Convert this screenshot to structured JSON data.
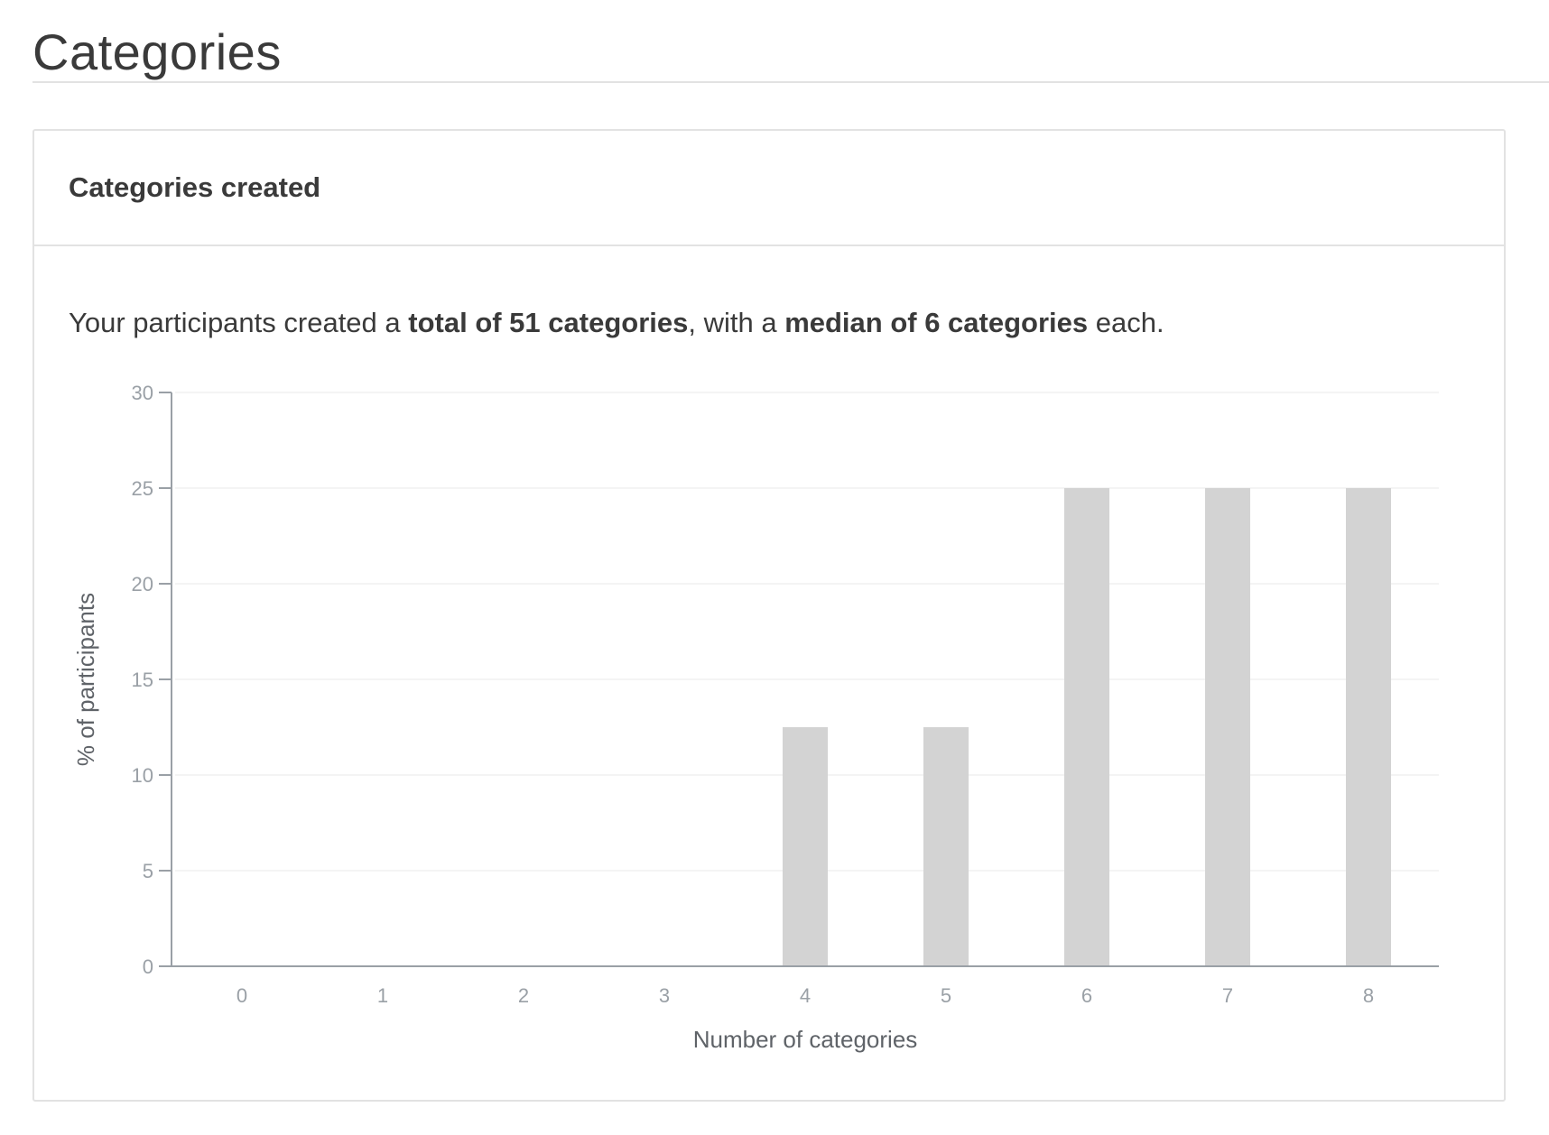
{
  "page": {
    "title": "Categories"
  },
  "card": {
    "title": "Categories created",
    "summary": {
      "prefix": "Your participants created a ",
      "total": "total of 51 categories",
      "middle": ", with a ",
      "median": "median of 6 categories",
      "suffix": " each."
    }
  },
  "chart_data": {
    "type": "bar",
    "categories": [
      "0",
      "1",
      "2",
      "3",
      "4",
      "5",
      "6",
      "7",
      "8"
    ],
    "values": [
      0,
      0,
      0,
      0,
      12.5,
      12.5,
      25,
      25,
      25
    ],
    "xlabel": "Number of categories",
    "ylabel": "% of participants",
    "ylim": [
      0,
      30
    ],
    "yticks": [
      "0",
      "5",
      "10",
      "15",
      "20",
      "25",
      "30"
    ],
    "grid": true,
    "bar_color": "#d3d3d3"
  }
}
